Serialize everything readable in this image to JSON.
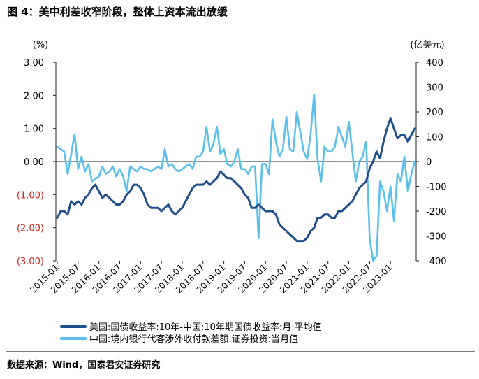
{
  "title": "图 4：美中利差收窄阶段，整体上资本流出放缓",
  "source": "数据来源：Wind，国泰君安证券研究",
  "chart_data": {
    "type": "line",
    "left_unit": "(%)",
    "right_unit": "(亿美元)",
    "left_axis": {
      "ylim": [
        -3,
        3
      ],
      "ticks": [
        3,
        2,
        1,
        0,
        -1,
        -2,
        -3
      ],
      "tick_labels": [
        "3.00",
        "2.00",
        "1.00",
        "0.00",
        "(1.00)",
        "(2.00)",
        "(3.00)"
      ],
      "negative_color": "#d0231b"
    },
    "right_axis": {
      "ylim": [
        -400,
        400
      ],
      "ticks": [
        400,
        300,
        200,
        100,
        0,
        -100,
        -200,
        -300,
        -400
      ],
      "tick_labels": [
        "400",
        "300",
        "200",
        "100",
        "0",
        "-100",
        "-200",
        "-300",
        "-400"
      ]
    },
    "x_tick_labels": [
      "2015-01",
      "2015-07",
      "2016-01",
      "2016-07",
      "2017-01",
      "2017-07",
      "2018-01",
      "2018-07",
      "2019-01",
      "2019-07",
      "2020-01",
      "2020-07",
      "2021-01",
      "2021-07",
      "2022-01",
      "2022-07",
      "2023-01"
    ],
    "x_start": "2015-01",
    "series": [
      {
        "name": "美国:国债收益率:10年-中国:10年期国债收益率:月:平均值",
        "axis": "left",
        "color": "#1f4e8c",
        "values": [
          -1.7,
          -1.5,
          -1.5,
          -1.6,
          -1.2,
          -1.3,
          -1.2,
          -1.3,
          -1.1,
          -1.0,
          -0.8,
          -0.7,
          -0.9,
          -1.1,
          -1.0,
          -1.1,
          -1.2,
          -1.3,
          -1.3,
          -1.2,
          -1.0,
          -0.9,
          -0.7,
          -0.7,
          -0.8,
          -1.0,
          -1.3,
          -1.4,
          -1.4,
          -1.4,
          -1.5,
          -1.4,
          -1.3,
          -1.5,
          -1.6,
          -1.5,
          -1.4,
          -1.2,
          -1.0,
          -0.8,
          -0.7,
          -0.7,
          -0.7,
          -0.6,
          -0.7,
          -0.6,
          -0.5,
          -0.3,
          -0.4,
          -0.5,
          -0.5,
          -0.6,
          -0.7,
          -0.8,
          -1.0,
          -1.1,
          -1.4,
          -1.4,
          -1.3,
          -1.4,
          -1.5,
          -1.5,
          -1.5,
          -1.6,
          -1.9,
          -2.0,
          -2.1,
          -2.2,
          -2.3,
          -2.4,
          -2.4,
          -2.4,
          -2.3,
          -2.1,
          -2.0,
          -1.7,
          -1.7,
          -1.6,
          -1.6,
          -1.7,
          -1.7,
          -1.5,
          -1.5,
          -1.4,
          -1.3,
          -1.2,
          -1.0,
          -0.8,
          -0.7,
          -0.6,
          -0.2,
          0.0,
          0.3,
          0.1,
          0.6,
          1.0,
          1.3,
          1.0,
          0.7,
          0.8,
          0.8,
          0.6,
          0.8,
          1.0
        ]
      },
      {
        "name": "中国:境内银行代客涉外收付款差额:证券投资:当月值",
        "axis": "right",
        "color": "#5bc0eb",
        "values": [
          60,
          50,
          40,
          -50,
          30,
          110,
          -30,
          20,
          -40,
          -10,
          -80,
          -70,
          -60,
          -20,
          -50,
          -40,
          -20,
          -60,
          -30,
          -60,
          -120,
          -20,
          -30,
          -40,
          -20,
          -30,
          -30,
          -40,
          -30,
          -20,
          -30,
          50,
          -20,
          -10,
          -30,
          -40,
          -30,
          -20,
          -10,
          -30,
          20,
          20,
          40,
          140,
          40,
          70,
          140,
          30,
          50,
          -10,
          -20,
          0,
          50,
          -30,
          -30,
          -50,
          -20,
          -20,
          -310,
          -10,
          -10,
          -50,
          170,
          80,
          20,
          50,
          180,
          50,
          40,
          200,
          120,
          40,
          10,
          110,
          270,
          10,
          -80,
          60,
          40,
          40,
          60,
          140,
          100,
          60,
          160,
          40,
          -80,
          0,
          20,
          80,
          -310,
          -400,
          -380,
          -80,
          -120,
          -200,
          -100,
          -240,
          -50,
          -80,
          20,
          -120,
          -50,
          0
        ]
      }
    ]
  }
}
